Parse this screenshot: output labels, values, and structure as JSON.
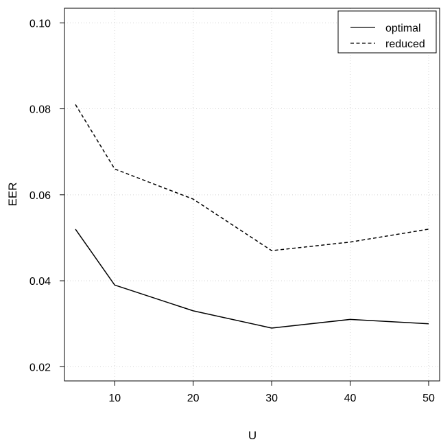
{
  "chart_data": {
    "type": "line",
    "title": "",
    "xlabel": "U",
    "ylabel": "EER",
    "x": [
      5,
      10,
      20,
      30,
      40,
      50
    ],
    "xticks": [
      10,
      20,
      30,
      40,
      50
    ],
    "xtick_labels": [
      "10",
      "20",
      "30",
      "40",
      "50"
    ],
    "yticks": [
      0.02,
      0.04,
      0.06,
      0.08,
      0.1
    ],
    "ytick_labels": [
      "0.02",
      "0.04",
      "0.06",
      "0.08",
      "0.10"
    ],
    "xlim": [
      3.6,
      51.4
    ],
    "ylim": [
      0.0167,
      0.1034
    ],
    "grid": true,
    "legend_position": "top-right",
    "series": [
      {
        "name": "optimal",
        "style": "solid",
        "color": "#000000",
        "values": [
          0.052,
          0.039,
          0.033,
          0.029,
          0.031,
          0.03
        ]
      },
      {
        "name": "reduced",
        "style": "dashed",
        "color": "#000000",
        "values": [
          0.081,
          0.066,
          0.059,
          0.047,
          0.049,
          0.052
        ]
      }
    ]
  }
}
